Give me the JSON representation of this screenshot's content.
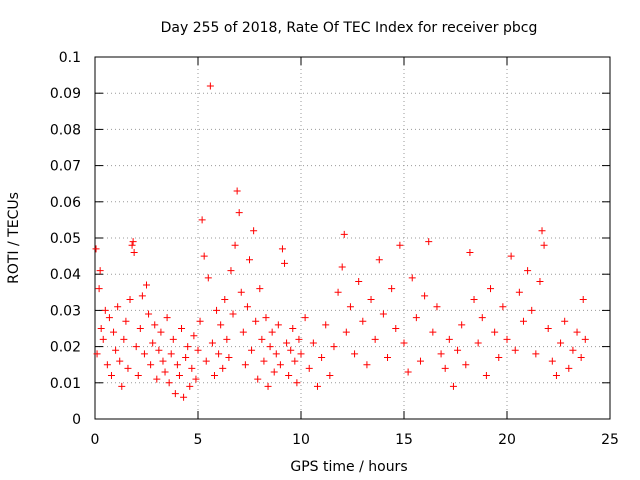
{
  "chart_data": {
    "type": "scatter",
    "title": "Day 255 of 2018, Rate Of TEC Index for receiver pbcg",
    "xlabel": "GPS time / hours",
    "ylabel": "ROTI / TECUs",
    "xlim": [
      0,
      25
    ],
    "ylim": [
      0,
      0.1
    ],
    "x_ticks": [
      "0",
      "5",
      "10",
      "15",
      "20",
      "25"
    ],
    "y_ticks": [
      "0",
      "0.01",
      "0.02",
      "0.03",
      "0.04",
      "0.05",
      "0.06",
      "0.07",
      "0.08",
      "0.09",
      "0.1"
    ],
    "grid": true,
    "marker": "+",
    "series": [
      {
        "name": "ROTI",
        "color": "#ff0000",
        "points": [
          [
            0.05,
            0.047
          ],
          [
            0.1,
            0.018
          ],
          [
            0.2,
            0.036
          ],
          [
            0.25,
            0.041
          ],
          [
            0.3,
            0.025
          ],
          [
            0.4,
            0.022
          ],
          [
            0.5,
            0.03
          ],
          [
            0.6,
            0.015
          ],
          [
            0.7,
            0.028
          ],
          [
            0.8,
            0.012
          ],
          [
            0.9,
            0.024
          ],
          [
            1.0,
            0.019
          ],
          [
            1.1,
            0.031
          ],
          [
            1.2,
            0.016
          ],
          [
            1.3,
            0.009
          ],
          [
            1.4,
            0.022
          ],
          [
            1.5,
            0.027
          ],
          [
            1.6,
            0.014
          ],
          [
            1.7,
            0.033
          ],
          [
            1.8,
            0.048
          ],
          [
            1.85,
            0.049
          ],
          [
            1.9,
            0.046
          ],
          [
            2.0,
            0.02
          ],
          [
            2.1,
            0.012
          ],
          [
            2.2,
            0.025
          ],
          [
            2.3,
            0.034
          ],
          [
            2.4,
            0.018
          ],
          [
            2.5,
            0.037
          ],
          [
            2.6,
            0.029
          ],
          [
            2.7,
            0.015
          ],
          [
            2.8,
            0.021
          ],
          [
            2.9,
            0.026
          ],
          [
            3.0,
            0.011
          ],
          [
            3.1,
            0.019
          ],
          [
            3.2,
            0.024
          ],
          [
            3.3,
            0.016
          ],
          [
            3.4,
            0.013
          ],
          [
            3.5,
            0.028
          ],
          [
            3.6,
            0.01
          ],
          [
            3.7,
            0.018
          ],
          [
            3.8,
            0.022
          ],
          [
            3.9,
            0.007
          ],
          [
            4.0,
            0.015
          ],
          [
            4.1,
            0.012
          ],
          [
            4.2,
            0.025
          ],
          [
            4.3,
            0.006
          ],
          [
            4.4,
            0.017
          ],
          [
            4.5,
            0.02
          ],
          [
            4.6,
            0.009
          ],
          [
            4.7,
            0.014
          ],
          [
            4.8,
            0.023
          ],
          [
            4.9,
            0.011
          ],
          [
            5.0,
            0.019
          ],
          [
            5.1,
            0.027
          ],
          [
            5.2,
            0.055
          ],
          [
            5.3,
            0.045
          ],
          [
            5.4,
            0.016
          ],
          [
            5.5,
            0.039
          ],
          [
            5.6,
            0.092
          ],
          [
            5.7,
            0.021
          ],
          [
            5.8,
            0.012
          ],
          [
            5.9,
            0.03
          ],
          [
            6.0,
            0.018
          ],
          [
            6.1,
            0.026
          ],
          [
            6.2,
            0.014
          ],
          [
            6.3,
            0.033
          ],
          [
            6.4,
            0.022
          ],
          [
            6.5,
            0.017
          ],
          [
            6.6,
            0.041
          ],
          [
            6.7,
            0.029
          ],
          [
            6.8,
            0.048
          ],
          [
            6.9,
            0.063
          ],
          [
            7.0,
            0.057
          ],
          [
            7.1,
            0.035
          ],
          [
            7.2,
            0.024
          ],
          [
            7.3,
            0.015
          ],
          [
            7.4,
            0.031
          ],
          [
            7.5,
            0.044
          ],
          [
            7.6,
            0.019
          ],
          [
            7.7,
            0.052
          ],
          [
            7.8,
            0.027
          ],
          [
            7.9,
            0.011
          ],
          [
            8.0,
            0.036
          ],
          [
            8.1,
            0.022
          ],
          [
            8.2,
            0.016
          ],
          [
            8.3,
            0.028
          ],
          [
            8.4,
            0.009
          ],
          [
            8.5,
            0.02
          ],
          [
            8.6,
            0.024
          ],
          [
            8.7,
            0.013
          ],
          [
            8.8,
            0.018
          ],
          [
            8.9,
            0.026
          ],
          [
            9.0,
            0.015
          ],
          [
            9.1,
            0.047
          ],
          [
            9.2,
            0.043
          ],
          [
            9.3,
            0.021
          ],
          [
            9.4,
            0.012
          ],
          [
            9.5,
            0.019
          ],
          [
            9.6,
            0.025
          ],
          [
            9.7,
            0.016
          ],
          [
            9.8,
            0.01
          ],
          [
            9.9,
            0.022
          ],
          [
            10.0,
            0.018
          ],
          [
            10.2,
            0.028
          ],
          [
            10.4,
            0.014
          ],
          [
            10.6,
            0.021
          ],
          [
            10.8,
            0.009
          ],
          [
            11.0,
            0.017
          ],
          [
            11.2,
            0.026
          ],
          [
            11.4,
            0.012
          ],
          [
            11.6,
            0.02
          ],
          [
            11.8,
            0.035
          ],
          [
            12.0,
            0.042
          ],
          [
            12.1,
            0.051
          ],
          [
            12.2,
            0.024
          ],
          [
            12.4,
            0.031
          ],
          [
            12.6,
            0.018
          ],
          [
            12.8,
            0.038
          ],
          [
            13.0,
            0.027
          ],
          [
            13.2,
            0.015
          ],
          [
            13.4,
            0.033
          ],
          [
            13.6,
            0.022
          ],
          [
            13.8,
            0.044
          ],
          [
            14.0,
            0.029
          ],
          [
            14.2,
            0.017
          ],
          [
            14.4,
            0.036
          ],
          [
            14.6,
            0.025
          ],
          [
            14.8,
            0.048
          ],
          [
            15.0,
            0.021
          ],
          [
            15.2,
            0.013
          ],
          [
            15.4,
            0.039
          ],
          [
            15.6,
            0.028
          ],
          [
            15.8,
            0.016
          ],
          [
            16.0,
            0.034
          ],
          [
            16.2,
            0.049
          ],
          [
            16.4,
            0.024
          ],
          [
            16.6,
            0.031
          ],
          [
            16.8,
            0.018
          ],
          [
            17.0,
            0.014
          ],
          [
            17.2,
            0.022
          ],
          [
            17.4,
            0.009
          ],
          [
            17.6,
            0.019
          ],
          [
            17.8,
            0.026
          ],
          [
            18.0,
            0.015
          ],
          [
            18.2,
            0.046
          ],
          [
            18.4,
            0.033
          ],
          [
            18.6,
            0.021
          ],
          [
            18.8,
            0.028
          ],
          [
            19.0,
            0.012
          ],
          [
            19.2,
            0.036
          ],
          [
            19.4,
            0.024
          ],
          [
            19.6,
            0.017
          ],
          [
            19.8,
            0.031
          ],
          [
            20.0,
            0.022
          ],
          [
            20.2,
            0.045
          ],
          [
            20.4,
            0.019
          ],
          [
            20.6,
            0.035
          ],
          [
            20.8,
            0.027
          ],
          [
            21.0,
            0.041
          ],
          [
            21.2,
            0.03
          ],
          [
            21.4,
            0.018
          ],
          [
            21.6,
            0.038
          ],
          [
            21.7,
            0.052
          ],
          [
            21.8,
            0.048
          ],
          [
            22.0,
            0.025
          ],
          [
            22.2,
            0.016
          ],
          [
            22.4,
            0.012
          ],
          [
            22.6,
            0.021
          ],
          [
            22.8,
            0.027
          ],
          [
            23.0,
            0.014
          ],
          [
            23.2,
            0.019
          ],
          [
            23.4,
            0.024
          ],
          [
            23.6,
            0.017
          ],
          [
            23.7,
            0.033
          ],
          [
            23.8,
            0.022
          ]
        ]
      }
    ]
  }
}
